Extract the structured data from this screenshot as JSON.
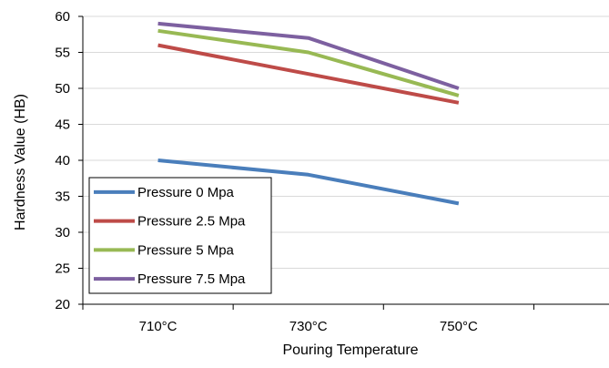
{
  "chart_data": {
    "type": "line",
    "title": "",
    "xlabel": "Pouring Temperature",
    "ylabel": "Hardness Value (HB)",
    "categories": [
      "710°C",
      "730°C",
      "750°C"
    ],
    "ylim": [
      20,
      60
    ],
    "yticks": [
      20,
      25,
      30,
      35,
      40,
      45,
      50,
      55,
      60
    ],
    "grid": true,
    "legend_position": "bottom-left",
    "series": [
      {
        "name": "Pressure 0 Mpa",
        "values": [
          40,
          38,
          34
        ],
        "color": "#4a7ebb"
      },
      {
        "name": "Pressure 2.5 Mpa",
        "values": [
          56,
          52,
          48
        ],
        "color": "#be4b48"
      },
      {
        "name": "Pressure 5 Mpa",
        "values": [
          58,
          55,
          49
        ],
        "color": "#98b954"
      },
      {
        "name": "Pressure 7.5 Mpa",
        "values": [
          59,
          57,
          50
        ],
        "color": "#7d60a0"
      }
    ]
  }
}
